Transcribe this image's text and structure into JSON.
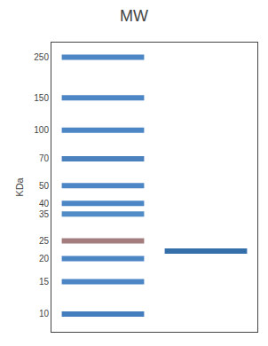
{
  "chart_data": {
    "type": "gel",
    "title": "MW",
    "ylabel": "KDa",
    "series": [
      {
        "values": [
          250,
          150,
          100,
          70,
          50,
          40,
          35,
          25,
          20,
          15,
          10
        ],
        "colors": [
          "#3a7abf",
          "#3a7abf",
          "#3a7abf",
          "#3875b8",
          "#3a7abf",
          "#3a7abf",
          "#4080c0",
          "#9a7070",
          "#3a7abf",
          "#3a7abf",
          "#3070b8"
        ]
      },
      {
        "values": [
          22
        ],
        "color": "#2060a0"
      }
    ],
    "ylim": [
      8,
      300
    ],
    "yticks": [
      250,
      150,
      100,
      70,
      50,
      40,
      35,
      25,
      20,
      15,
      10
    ],
    "log": "y",
    "grid": false,
    "tick_labels": "y"
  }
}
